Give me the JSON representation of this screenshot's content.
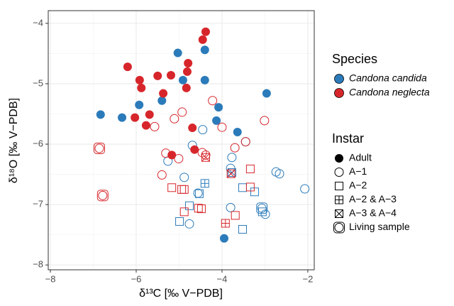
{
  "chart_data": {
    "type": "scatter",
    "x_label": "δ¹³C [‰ V−PDB]",
    "y_label": "δ¹⁸O [‰ V−PDB]",
    "xlim": [
      -8.05,
      -1.85
    ],
    "ylim": [
      -8.08,
      -3.79
    ],
    "xticks": [
      {
        "value": -8,
        "label": "−8"
      },
      {
        "value": -6,
        "label": "−6"
      },
      {
        "value": -4,
        "label": "−4"
      },
      {
        "value": -2,
        "label": "−2"
      }
    ],
    "yticks": [
      {
        "value": -8,
        "label": "−8"
      },
      {
        "value": -7,
        "label": "−7"
      },
      {
        "value": -6,
        "label": "−6"
      },
      {
        "value": -5,
        "label": "−5"
      },
      {
        "value": -4,
        "label": "−4"
      }
    ],
    "grid": true,
    "species_title": "Species",
    "instar_title": "Instar",
    "instars": [
      {
        "name": "Adult",
        "shape": "filled-circle"
      },
      {
        "name": "A−1",
        "shape": "circle"
      },
      {
        "name": "A−2",
        "shape": "square"
      },
      {
        "name": "A−2 & A−3",
        "shape": "square-plus"
      },
      {
        "name": "A−3 & A−4",
        "shape": "square-cross"
      },
      {
        "name": "Living sample",
        "shape": "living"
      }
    ],
    "series": [
      {
        "name": "Candona candida",
        "color": "#2b7bba",
        "groups": [
          {
            "x": [
              -5.03,
              -4.4,
              -4.91,
              -4.4,
              -2.96,
              -5.4,
              -6.83,
              -6.33,
              -5.93,
              -4.08,
              -4.13,
              -3.64,
              -3.95
            ],
            "y": [
              -4.49,
              -4.44,
              -4.94,
              -4.94,
              -5.16,
              -5.28,
              -5.51,
              -5.56,
              -5.35,
              -5.39,
              -5.61,
              -5.8,
              -7.56
            ]
          },
          {
            "x": [
              -5.26,
              -4.69,
              -4.45,
              -3.77,
              -3.8,
              -2.74,
              -2.66,
              -2.07,
              -4.88,
              -4.56,
              -3.8,
              -2.99,
              -4.76,
              -3.45
            ],
            "y": [
              -6.28,
              -6.02,
              -5.76,
              -6.22,
              -6.4,
              -6.46,
              -6.49,
              -6.74,
              -6.55,
              -6.81,
              -7.05,
              -7.16,
              -7.32,
              -5.96
            ]
          },
          {
            "x": [
              -4.53,
              -4.76,
              -4.99,
              -3.52,
              -3.24,
              -3.52,
              -3.06
            ],
            "y": [
              -6.82,
              -7.02,
              -7.28,
              -6.72,
              -6.79,
              -7.41,
              -7.12
            ]
          },
          {
            "x": [
              -4.4
            ],
            "y": [
              -6.65
            ]
          },
          {
            "x": [
              -3.77
            ],
            "y": [
              -6.47
            ]
          },
          {
            "x": [
              -3.07
            ],
            "y": [
              -7.06
            ]
          }
        ]
      },
      {
        "name": "Candona neglecta",
        "color": "#d7262b",
        "groups": [
          {
            "x": [
              -4.38,
              -4.45,
              -4.79,
              -4.81,
              -6.2,
              -5.92,
              -5.88,
              -5.5,
              -5.19,
              -4.83,
              -5.37,
              -5.69,
              -6.03,
              -5.77,
              -4.69,
              -4.64,
              -5.17
            ],
            "y": [
              -4.14,
              -4.27,
              -4.66,
              -4.8,
              -4.72,
              -4.94,
              -5.07,
              -4.87,
              -4.86,
              -5.07,
              -5.16,
              -5.51,
              -5.56,
              -5.69,
              -5.73,
              -6.09,
              -6.18
            ]
          },
          {
            "x": [
              -5.57,
              -5.11,
              -4.93,
              -4.22,
              -4.0,
              -3.7,
              -3.45,
              -3.01,
              -5.31,
              -5.01,
              -5.4,
              -4.46,
              -4.38
            ],
            "y": [
              -5.71,
              -5.58,
              -5.47,
              -5.28,
              -5.72,
              -6.06,
              -5.96,
              -5.61,
              -6.15,
              -6.24,
              -6.51,
              -6.14,
              -6.18
            ]
          },
          {
            "x": [
              -5.17,
              -4.94,
              -4.88,
              -4.55,
              -4.48,
              -4.88,
              -3.69,
              -3.34,
              -3.34
            ],
            "y": [
              -6.72,
              -6.75,
              -6.75,
              -7.06,
              -7.07,
              -7.12,
              -7.18,
              -6.41,
              -6.71
            ]
          },
          {
            "x": [
              -3.92
            ],
            "y": [
              -7.31
            ]
          },
          {
            "x": [
              -4.38,
              -3.79
            ],
            "y": [
              -6.22,
              -6.49
            ]
          },
          {
            "x": [
              -6.86,
              -6.78
            ],
            "y": [
              -6.07,
              -6.85
            ]
          }
        ]
      }
    ]
  }
}
